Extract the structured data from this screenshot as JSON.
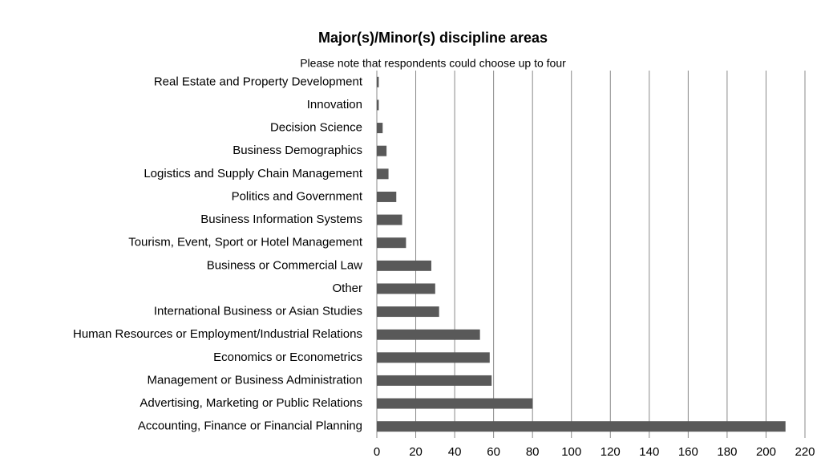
{
  "chart_data": {
    "type": "bar",
    "orientation": "horizontal",
    "title": "Major(s)/Minor(s) discipline areas",
    "subtitle": "Please note that respondents could choose up to four",
    "categories": [
      "Real Estate and Property Development",
      "Innovation",
      "Decision Science",
      "Business Demographics",
      "Logistics and Supply Chain Management",
      "Politics and Government",
      "Business Information Systems",
      "Tourism, Event, Sport or Hotel Management",
      "Business or Commercial Law",
      "Other",
      "International Business or Asian Studies",
      "Human Resources or Employment/Industrial Relations",
      "Economics or Econometrics",
      "Management or Business Administration",
      "Advertising, Marketing or Public Relations",
      "Accounting, Finance or Financial Planning"
    ],
    "values": [
      1,
      1,
      3,
      5,
      6,
      10,
      13,
      15,
      28,
      30,
      32,
      53,
      58,
      59,
      80,
      210
    ],
    "color": "#595959",
    "xlim": [
      0,
      220
    ],
    "xticks": [
      0,
      20,
      40,
      60,
      80,
      100,
      120,
      140,
      160,
      180,
      200,
      220
    ],
    "grid": true
  }
}
